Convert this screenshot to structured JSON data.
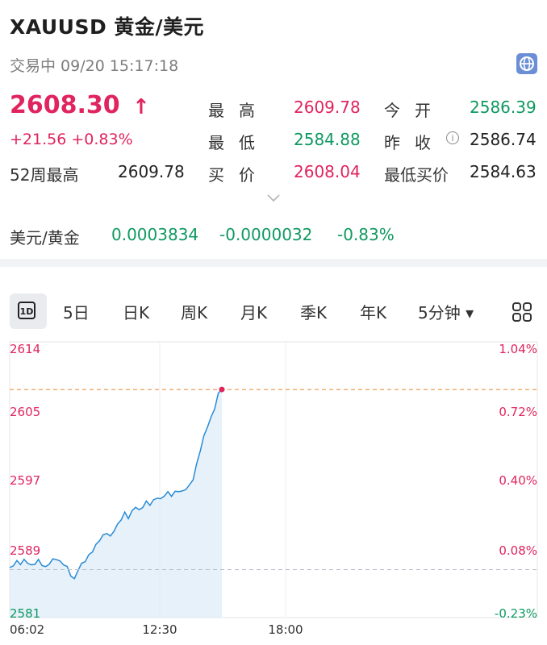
{
  "header": {
    "title": "XAUUSD  黄金/美元",
    "status": "交易中   09/20 15:17:18"
  },
  "quote": {
    "price": "2608.30",
    "change": "+21.56  +0.83%",
    "high_label": "最高",
    "high_value": "2609.78",
    "low_label": "最低",
    "low_value": "2584.88",
    "bid_label": "买价",
    "bid_value": "2608.04",
    "open_label": "今开",
    "open_value": "2586.39",
    "prev_close_label": "昨收",
    "prev_close_value": "2586.74",
    "week52_label": "52周最高",
    "week52_value": "2609.78",
    "min_bid_label": "最低买价",
    "min_bid_value": "2584.63"
  },
  "inverse": {
    "label": "美元/黄金",
    "value": "0.0003834",
    "change": "-0.0000032",
    "pct": "-0.83%"
  },
  "tabs": {
    "t1d": "1D",
    "t5d": "5日",
    "day": "日K",
    "week": "周K",
    "month": "月K",
    "season": "季K",
    "year": "年K",
    "min5": "5分钟 ▾"
  },
  "colors": {
    "up": "#e0245e",
    "down": "#0f9960",
    "line": "#2a8bd6"
  },
  "chart_data": {
    "type": "area",
    "y_left_ticks": [
      "2614",
      "2605",
      "2597",
      "2589",
      "2581"
    ],
    "y_right_ticks": [
      "1.04%",
      "0.72%",
      "0.40%",
      "0.08%",
      "-0.23%"
    ],
    "x_ticks": [
      "06:02",
      "12:30",
      "18:00"
    ],
    "ylim": [
      2581,
      2614
    ],
    "reference_price": 2586.74,
    "current_price": 2608.3,
    "series": [
      {
        "values": [
          2587.0,
          2587.3,
          2587.6,
          2587.4,
          2587.8,
          2587.5,
          2587.2,
          2587.6,
          2587.9,
          2587.4,
          2587.1,
          2587.5,
          2587.8,
          2588.0,
          2587.6,
          2587.3,
          2587.0,
          2586.2,
          2585.6,
          2586.8,
          2587.5,
          2587.8,
          2588.3,
          2588.9,
          2589.6,
          2590.2,
          2590.8,
          2591.3,
          2590.7,
          2591.5,
          2592.2,
          2592.8,
          2593.4,
          2592.9,
          2593.6,
          2594.2,
          2593.8,
          2594.4,
          2594.9,
          2594.6,
          2595.1,
          2595.4,
          2595.0,
          2595.6,
          2595.9,
          2595.5,
          2596.0,
          2596.3,
          2596.1,
          2596.5,
          2596.9,
          2597.6,
          2599.2,
          2601.0,
          2602.6,
          2603.8,
          2604.9,
          2606.2,
          2607.8,
          2608.3
        ]
      }
    ]
  }
}
